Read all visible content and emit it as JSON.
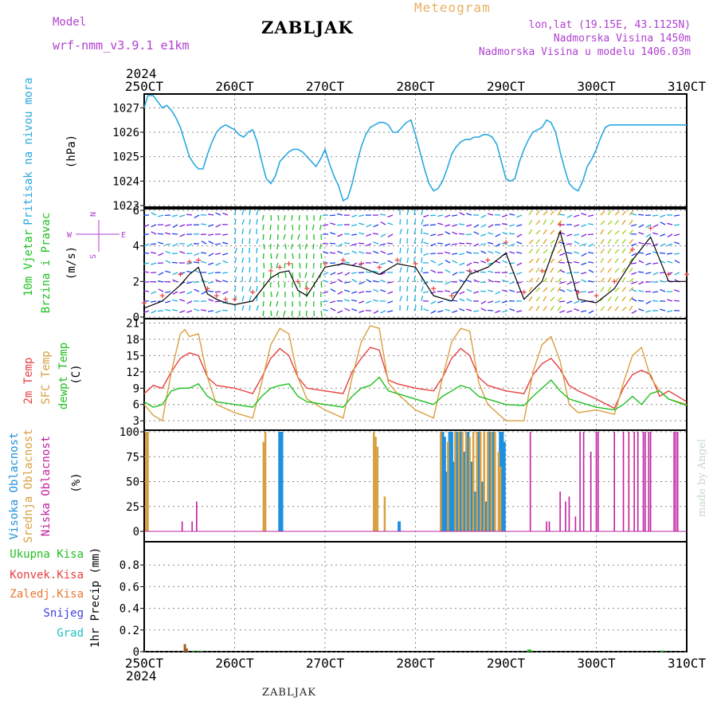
{
  "header": {
    "title": "ZABLJAK",
    "model_label": "Model",
    "model_name": "wrf-nmm_v3.9.1 e1km",
    "meteogram_label": "Meteogram",
    "info_lines": [
      "lon,lat (19.15E, 43.1125N)",
      "Nadmorska Visina 1450m",
      "Nadmorska Visina u modelu 1406.03m"
    ],
    "bottom_station": "ZABLJAK",
    "credit": "made by Angel"
  },
  "colors": {
    "pressure": "#2aa8e0",
    "temp2m": "#e84040",
    "sfc_temp": "#d8a040",
    "dewpt": "#20c020",
    "cloud_high": "#1e90e0",
    "cloud_mid": "#d8a040",
    "cloud_low": "#c020a0",
    "total_precip": "#20c020",
    "conv_precip": "#e84040",
    "frozen_precip": "#e87830",
    "snow": "#4040e0",
    "hail": "#20c0c0",
    "wind_speed_line": "#000000",
    "wind_gust_marker": "#e84040",
    "purple_label": "#b040d0"
  },
  "chart_data": [
    {
      "type": "line",
      "panel": "pressure",
      "ylabel_rotated": "Pritisak na nivou mora",
      "unit": "(hPa)",
      "x_tick_labels": [
        "250CT",
        "260CT",
        "270CT",
        "280CT",
        "290CT",
        "300CT",
        "310CT"
      ],
      "year_label": "2024",
      "ylim": [
        1023,
        1027.5
      ],
      "yticks": [
        1023,
        1024,
        1025,
        1026,
        1027
      ],
      "ytick_labels": [
        "1023",
        "1024",
        "1025",
        "1026",
        "1027"
      ],
      "grid": true,
      "series": [
        {
          "color": "#2aa8e0",
          "x": [
            0,
            0.04,
            0.1,
            0.16,
            0.2,
            0.25,
            0.3,
            0.35,
            0.4,
            0.45,
            0.5,
            0.55,
            0.6,
            0.65,
            0.7,
            0.75,
            0.8,
            0.85,
            0.9,
            0.95,
            1.0,
            1.05,
            1.1,
            1.15,
            1.2,
            1.25,
            1.3,
            1.35,
            1.4,
            1.45,
            1.5,
            1.55,
            1.6,
            1.65,
            1.7,
            1.75,
            1.8,
            1.85,
            1.9,
            1.95,
            2.0,
            2.05,
            2.1,
            2.15,
            2.2,
            2.25,
            2.3,
            2.35,
            2.4,
            2.45,
            2.5,
            2.55,
            2.6,
            2.65,
            2.7,
            2.75,
            2.8,
            2.85,
            2.9,
            2.95,
            3.0,
            3.05,
            3.1,
            3.15,
            3.2,
            3.25,
            3.3,
            3.35,
            3.4,
            3.45,
            3.5,
            3.55,
            3.6,
            3.65,
            3.7,
            3.75,
            3.8,
            3.85,
            3.9,
            3.95,
            4.0,
            4.05,
            4.1,
            4.15,
            4.2,
            4.25,
            4.3,
            4.35,
            4.4,
            4.45,
            4.5,
            4.55,
            4.6,
            4.65,
            4.7,
            4.75,
            4.8,
            4.85,
            4.9,
            4.95,
            5.0,
            5.05,
            5.1,
            5.15,
            5.2,
            5.25,
            5.3,
            5.35,
            5.4,
            5.45,
            5.5,
            5.55,
            5.6,
            5.65,
            5.7,
            5.75,
            5.8,
            5.85,
            5.9,
            5.95,
            6.0
          ],
          "y": [
            1027.0,
            1027.5,
            1027.5,
            1027.2,
            1027.0,
            1027.1,
            1026.9,
            1026.6,
            1026.2,
            1025.6,
            1025.0,
            1024.7,
            1024.5,
            1024.5,
            1025.1,
            1025.6,
            1026.0,
            1026.2,
            1026.3,
            1026.2,
            1026.1,
            1025.9,
            1025.8,
            1026.0,
            1026.1,
            1025.6,
            1024.8,
            1024.1,
            1023.9,
            1024.2,
            1024.8,
            1025.0,
            1025.2,
            1025.3,
            1025.3,
            1025.2,
            1025.0,
            1024.8,
            1024.6,
            1024.9,
            1025.3,
            1024.7,
            1024.2,
            1023.8,
            1023.2,
            1023.3,
            1023.9,
            1024.7,
            1025.4,
            1025.9,
            1026.2,
            1026.3,
            1026.4,
            1026.4,
            1026.3,
            1026.0,
            1026.0,
            1026.2,
            1026.4,
            1026.5,
            1025.9,
            1025.2,
            1024.5,
            1023.9,
            1023.6,
            1023.7,
            1024.0,
            1024.5,
            1025.1,
            1025.4,
            1025.6,
            1025.7,
            1025.7,
            1025.8,
            1025.8,
            1025.9,
            1025.9,
            1025.8,
            1025.5,
            1024.8,
            1024.1,
            1024.0,
            1024.1,
            1024.8,
            1025.3,
            1025.7,
            1026.0,
            1026.1,
            1026.2,
            1026.5,
            1026.4,
            1026.0,
            1025.2,
            1024.5,
            1023.9,
            1023.7,
            1023.6,
            1024.0,
            1024.6,
            1024.9,
            1025.3,
            1025.8,
            1026.2,
            1026.3,
            1026.3,
            1026.3,
            1026.3,
            1026.3,
            1026.3,
            1026.3,
            1026.3,
            1026.3,
            1026.3,
            1026.3,
            1026.3,
            1026.3,
            1026.3,
            1026.3,
            1026.3,
            1026.3,
            1026.3
          ]
        }
      ]
    },
    {
      "type": "line",
      "panel": "wind",
      "ylabel_rotated_1": "10m Vjetar",
      "ylabel_rotated_2": "Brzina i Pravac",
      "unit": "(m/s)",
      "ylim": [
        0,
        6
      ],
      "yticks": [
        0,
        2,
        4,
        6
      ],
      "ytick_labels": [
        "0",
        "2",
        "4",
        "6"
      ],
      "compass_labels": [
        "N",
        "S",
        "W",
        "E"
      ],
      "wind_barb_colors": [
        "#8020e0",
        "#2040f0",
        "#20b0e0",
        "#20c020",
        "#a0d020",
        "#e0a020"
      ],
      "series": [
        {
          "name_hint": "speed",
          "color": "#000000",
          "x": [
            0,
            0.2,
            0.4,
            0.5,
            0.6,
            0.7,
            0.8,
            0.9,
            1.0,
            1.2,
            1.4,
            1.5,
            1.6,
            1.7,
            1.8,
            2.0,
            2.2,
            2.4,
            2.6,
            2.8,
            3.0,
            3.2,
            3.4,
            3.6,
            3.8,
            4.0,
            4.2,
            4.4,
            4.6,
            4.8,
            5.0,
            5.2,
            5.4,
            5.6,
            5.8,
            6.0
          ],
          "y": [
            0.5,
            0.9,
            1.8,
            2.4,
            2.8,
            1.3,
            1.0,
            0.8,
            0.7,
            0.9,
            2.2,
            2.5,
            2.6,
            1.5,
            1.2,
            2.8,
            3.0,
            2.8,
            2.4,
            3.0,
            2.8,
            1.2,
            0.9,
            2.4,
            2.8,
            3.6,
            1.0,
            2.0,
            4.8,
            1.0,
            0.8,
            1.6,
            3.2,
            4.5,
            2.0,
            2.0
          ]
        },
        {
          "name_hint": "gust",
          "color": "#e84040",
          "x": [
            0,
            0.2,
            0.4,
            0.5,
            0.6,
            0.7,
            0.8,
            0.9,
            1.0,
            1.2,
            1.4,
            1.5,
            1.6,
            1.7,
            1.8,
            2.0,
            2.2,
            2.4,
            2.6,
            2.8,
            3.0,
            3.2,
            3.4,
            3.6,
            3.8,
            4.0,
            4.2,
            4.4,
            4.6,
            4.8,
            5.0,
            5.2,
            5.4,
            5.6,
            5.8,
            6.0
          ],
          "y": [
            0.8,
            1.2,
            2.4,
            3.1,
            3.2,
            1.6,
            1.2,
            1.0,
            1.0,
            1.4,
            2.6,
            2.8,
            3.0,
            2.0,
            1.6,
            3.0,
            3.2,
            3.0,
            2.8,
            3.2,
            3.0,
            1.6,
            1.2,
            2.6,
            3.2,
            4.2,
            1.4,
            2.6,
            5.2,
            1.4,
            1.2,
            2.0,
            3.8,
            5.0,
            2.4,
            2.4
          ]
        }
      ]
    },
    {
      "type": "line",
      "panel": "temperature",
      "ylabel_rotated_1": "2m Temp",
      "ylabel_rotated_2": "SFC Temp",
      "ylabel_rotated_3": "dewpt Temp",
      "unit": "(C)",
      "ylim": [
        2,
        21.5
      ],
      "yticks": [
        3,
        6,
        9,
        12,
        15,
        18,
        21
      ],
      "ytick_labels": [
        "3",
        "6",
        "9",
        "12",
        "15",
        "18",
        "21"
      ],
      "series": [
        {
          "name_hint": "2m temp",
          "color": "#e84040",
          "x": [
            0,
            0.1,
            0.2,
            0.3,
            0.4,
            0.5,
            0.6,
            0.7,
            0.8,
            1.0,
            1.2,
            1.3,
            1.4,
            1.5,
            1.6,
            1.7,
            1.8,
            2.0,
            2.2,
            2.3,
            2.4,
            2.5,
            2.6,
            2.7,
            2.8,
            3.0,
            3.2,
            3.3,
            3.4,
            3.5,
            3.6,
            3.7,
            3.8,
            4.0,
            4.2,
            4.3,
            4.4,
            4.5,
            4.6,
            4.7,
            4.8,
            5.0,
            5.2,
            5.3,
            5.4,
            5.5,
            5.6,
            5.7,
            5.8,
            6.0
          ],
          "y": [
            8,
            9.5,
            9,
            12,
            14.5,
            15.5,
            15,
            11,
            9.5,
            9,
            8,
            11,
            14.5,
            16.3,
            15,
            11,
            9,
            8.5,
            8,
            12,
            14.5,
            16.5,
            16,
            10.5,
            9.8,
            9,
            8.5,
            11,
            14.5,
            16.3,
            15,
            11,
            9.5,
            8.5,
            8,
            11.5,
            13.5,
            14.5,
            12.5,
            9.5,
            8.5,
            7,
            5.3,
            9,
            11.5,
            12.3,
            11.5,
            7.5,
            8.5,
            6.5
          ]
        },
        {
          "name_hint": "sfc temp",
          "color": "#d8a040",
          "x": [
            0,
            0.1,
            0.2,
            0.3,
            0.4,
            0.45,
            0.5,
            0.6,
            0.7,
            0.8,
            1.0,
            1.2,
            1.3,
            1.4,
            1.5,
            1.6,
            1.7,
            1.8,
            2.0,
            2.2,
            2.3,
            2.4,
            2.5,
            2.6,
            2.7,
            2.8,
            3.0,
            3.2,
            3.3,
            3.4,
            3.5,
            3.6,
            3.7,
            3.8,
            4.0,
            4.2,
            4.3,
            4.4,
            4.5,
            4.6,
            4.7,
            4.8,
            5.0,
            5.2,
            5.3,
            5.4,
            5.5,
            5.6,
            5.7,
            5.8,
            6.0
          ],
          "y": [
            6,
            4,
            3,
            12,
            19,
            19.8,
            18.5,
            19,
            11,
            6,
            4.5,
            3.5,
            10,
            17,
            20,
            19,
            11,
            7,
            5,
            3.5,
            11,
            17.5,
            20.5,
            20,
            10,
            8,
            5,
            3.5,
            11,
            17.5,
            20,
            19.5,
            10,
            6,
            3,
            3,
            12,
            17,
            18.5,
            14,
            6,
            4.5,
            5,
            4.2,
            10,
            15,
            16.5,
            11,
            8.5,
            7,
            6
          ]
        },
        {
          "name_hint": "dewpt",
          "color": "#20c020",
          "x": [
            0,
            0.1,
            0.2,
            0.3,
            0.4,
            0.5,
            0.6,
            0.7,
            0.8,
            1.0,
            1.2,
            1.3,
            1.4,
            1.5,
            1.6,
            1.7,
            1.8,
            2.0,
            2.2,
            2.3,
            2.4,
            2.5,
            2.6,
            2.7,
            2.8,
            3.0,
            3.2,
            3.3,
            3.4,
            3.5,
            3.6,
            3.7,
            3.8,
            4.0,
            4.2,
            4.3,
            4.4,
            4.5,
            4.6,
            4.7,
            4.8,
            5.0,
            5.2,
            5.3,
            5.4,
            5.5,
            5.6,
            5.7,
            5.8,
            6.0
          ],
          "y": [
            6.5,
            5.5,
            6,
            8.5,
            9,
            9,
            9.8,
            7.5,
            6.5,
            6,
            5.5,
            7.5,
            9,
            9.5,
            9.8,
            7.5,
            6.5,
            6,
            5.5,
            7.5,
            9,
            9.5,
            11,
            8.5,
            8,
            7,
            6,
            7.5,
            8.5,
            9.5,
            9,
            7.5,
            7,
            6,
            5.8,
            7.5,
            9,
            10.5,
            8.5,
            7,
            6.5,
            5.5,
            5,
            6,
            7.5,
            6,
            8,
            8.5,
            7,
            5.8
          ]
        }
      ]
    },
    {
      "type": "bar",
      "panel": "cloud",
      "ylabel_rotated_1": "Visoka Oblacnost",
      "ylabel_rotated_2": "Srednja Oblacnost",
      "ylabel_rotated_3": "Niska Oblacnost",
      "unit": "(%)",
      "ylim": [
        0,
        100
      ],
      "yticks": [
        0,
        25,
        50,
        75,
        100
      ],
      "ytick_labels": [
        "0",
        "25",
        "50",
        "75",
        "100"
      ],
      "series": [
        {
          "name_hint": "high",
          "color": "#1e90e0",
          "x": [
            1.5,
            1.52,
            2.82,
            3.3,
            3.32,
            3.34,
            3.38,
            3.4,
            3.42,
            3.46,
            3.5,
            3.54,
            3.58,
            3.62,
            3.66,
            3.7,
            3.74,
            3.78,
            3.82,
            3.86,
            3.94,
            3.96,
            3.98
          ],
          "y": [
            100,
            100,
            10,
            100,
            95,
            60,
            100,
            100,
            70,
            100,
            100,
            80,
            100,
            70,
            40,
            100,
            50,
            30,
            100,
            100,
            100,
            100,
            90
          ]
        },
        {
          "name_hint": "mid",
          "color": "#d8a040",
          "x": [
            0.02,
            0.04,
            1.32,
            1.34,
            2.54,
            2.56,
            2.58,
            2.66,
            3.28,
            3.36,
            3.44,
            3.48,
            3.52,
            3.56,
            3.6,
            3.64,
            3.68,
            3.72,
            3.76,
            3.8,
            3.84,
            3.88,
            3.92,
            3.94
          ],
          "y": [
            100,
            100,
            90,
            100,
            100,
            95,
            85,
            35,
            100,
            90,
            100,
            100,
            100,
            100,
            95,
            100,
            100,
            100,
            100,
            100,
            100,
            100,
            80,
            65
          ]
        },
        {
          "name_hint": "low",
          "color": "#c020a0",
          "x": [
            0.42,
            0.53,
            0.58,
            4.27,
            4.45,
            4.48,
            4.6,
            4.66,
            4.7,
            4.77,
            4.82,
            4.86,
            4.94,
            5.0,
            5.02,
            5.2,
            5.3,
            5.36,
            5.42,
            5.46,
            5.52,
            5.54,
            5.58,
            5.6,
            5.86,
            5.88,
            5.9
          ],
          "y": [
            10,
            10,
            30,
            100,
            10,
            10,
            40,
            30,
            35,
            15,
            100,
            100,
            80,
            100,
            100,
            100,
            100,
            100,
            100,
            100,
            100,
            100,
            100,
            100,
            100,
            100,
            100
          ]
        }
      ]
    },
    {
      "type": "bar",
      "panel": "precip",
      "ylabel_rotated": "1hr Precip",
      "unit": "(mm)",
      "legend_rows": [
        "Ukupna Kisa",
        "Konvek.Kisa",
        "Zaledj.Kisa",
        "Snijeg",
        "Grad"
      ],
      "ylim": [
        0,
        1
      ],
      "yticks": [
        0,
        0.2,
        0.4,
        0.6,
        0.8
      ],
      "ytick_labels": [
        "0",
        "0.2",
        "0.4",
        "0.6",
        "0.8"
      ],
      "year_label": "2024",
      "series": [
        {
          "name_hint": "total",
          "color": "#20c020",
          "x": [
            0.45,
            0.55,
            0.62,
            4.25,
            4.27,
            5.72,
            5.74
          ],
          "y": [
            0.02,
            0.01,
            0.01,
            0.02,
            0.02,
            0.01,
            0.01
          ]
        },
        {
          "name_hint": "frozen",
          "color": "#a06020",
          "x": [
            0.45,
            0.47
          ],
          "y": [
            0.07,
            0.03
          ]
        }
      ]
    }
  ]
}
